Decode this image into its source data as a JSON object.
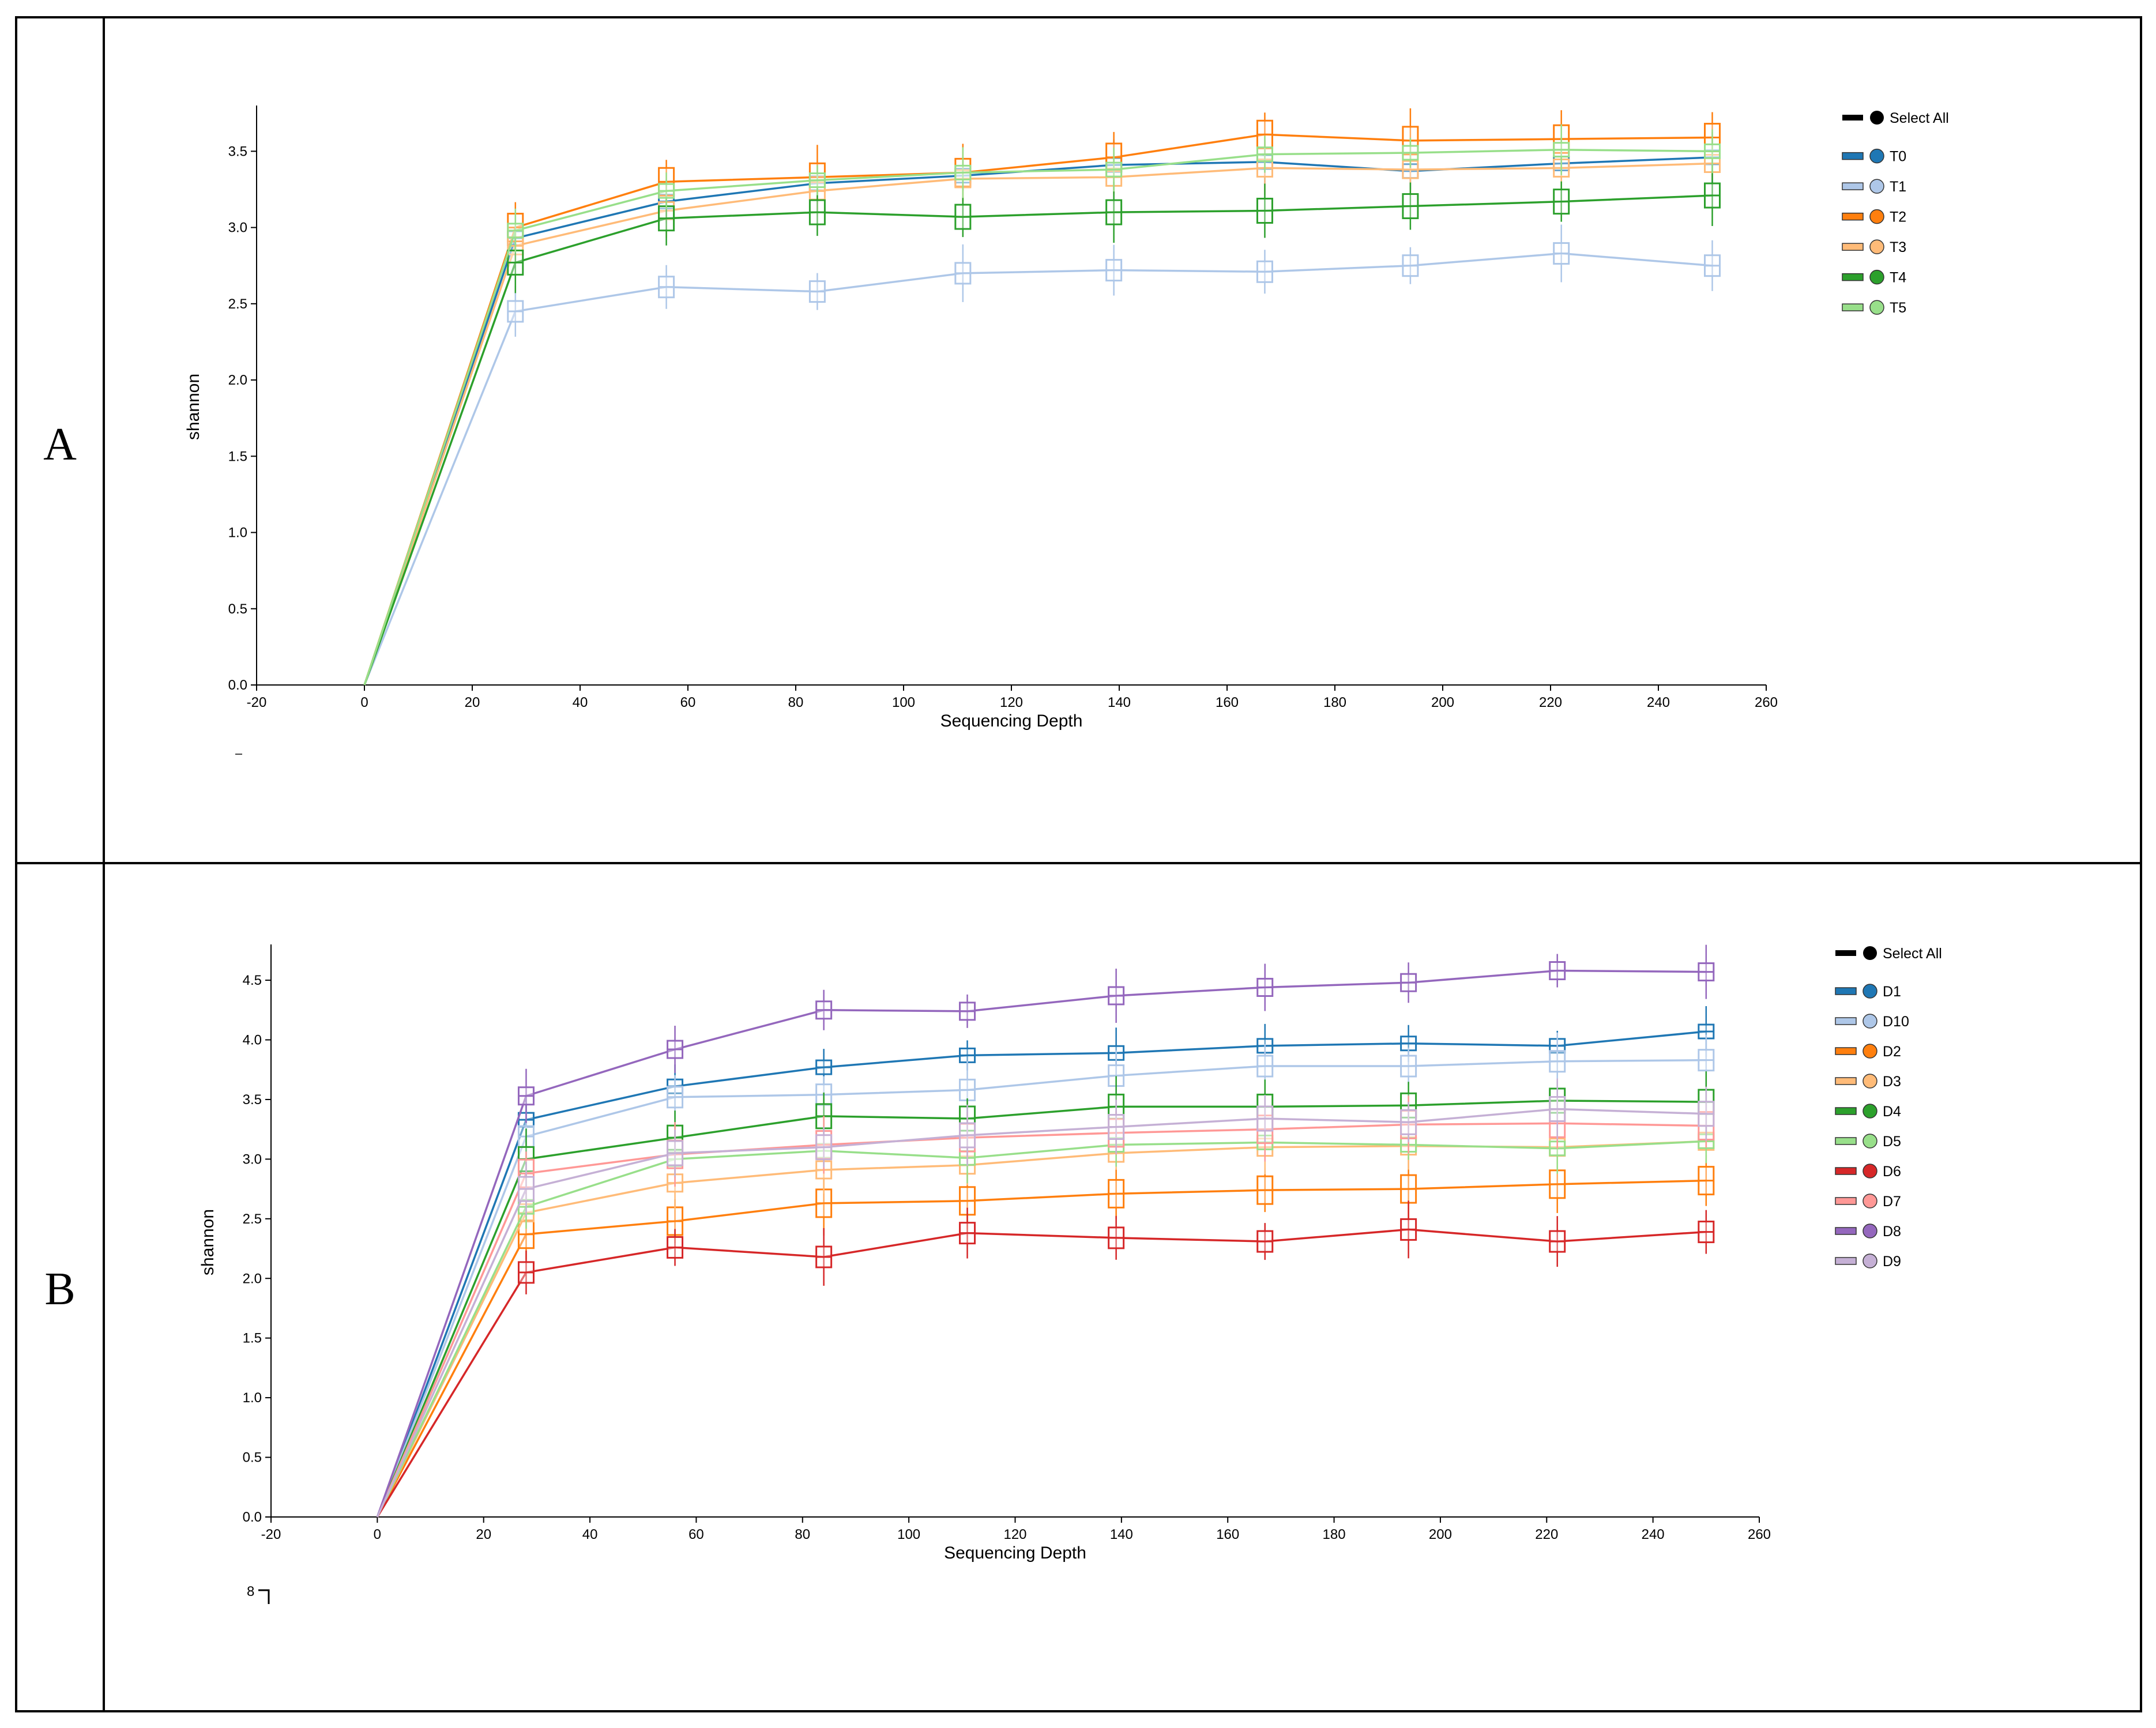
{
  "panels": [
    {
      "letter": "A"
    },
    {
      "letter": "B"
    }
  ],
  "stray_text_b": "8",
  "chart_data": [
    {
      "type": "line",
      "panel": "A",
      "title": "",
      "xlabel": "Sequencing Depth",
      "ylabel": "shannon",
      "xlim": [
        -20,
        260
      ],
      "ylim": [
        0,
        3.8
      ],
      "xticks": [
        -20,
        0,
        20,
        40,
        60,
        80,
        100,
        120,
        140,
        160,
        180,
        200,
        220,
        240,
        260
      ],
      "yticks": [
        0.0,
        0.5,
        1.0,
        1.5,
        2.0,
        2.5,
        3.0,
        3.5
      ],
      "grid": false,
      "legend_position": "top-right",
      "legend_select_all": "Select All",
      "x": [
        0,
        28,
        56,
        84,
        111,
        139,
        167,
        194,
        222,
        250
      ],
      "series": [
        {
          "name": "T0",
          "color": "#1f77b4",
          "values": [
            0,
            2.93,
            3.17,
            3.29,
            3.34,
            3.41,
            3.43,
            3.37,
            3.42,
            3.46
          ]
        },
        {
          "name": "T1",
          "color": "#aec7e8",
          "values": [
            0,
            2.45,
            2.61,
            2.58,
            2.7,
            2.72,
            2.71,
            2.75,
            2.83,
            2.75
          ]
        },
        {
          "name": "T2",
          "color": "#ff7f0e",
          "values": [
            0,
            3.0,
            3.3,
            3.33,
            3.36,
            3.46,
            3.61,
            3.57,
            3.58,
            3.59
          ]
        },
        {
          "name": "T3",
          "color": "#ffbb78",
          "values": [
            0,
            2.88,
            3.11,
            3.24,
            3.32,
            3.33,
            3.39,
            3.38,
            3.39,
            3.42
          ]
        },
        {
          "name": "T4",
          "color": "#2ca02c",
          "values": [
            0,
            2.77,
            3.06,
            3.1,
            3.07,
            3.1,
            3.11,
            3.14,
            3.17,
            3.21
          ]
        },
        {
          "name": "T5",
          "color": "#98df8a",
          "values": [
            0,
            2.98,
            3.24,
            3.31,
            3.36,
            3.38,
            3.48,
            3.49,
            3.51,
            3.5
          ]
        }
      ]
    },
    {
      "type": "line",
      "panel": "B",
      "title": "",
      "xlabel": "Sequencing Depth",
      "ylabel": "shannon",
      "xlim": [
        -20,
        260
      ],
      "ylim": [
        0,
        4.8
      ],
      "xticks": [
        -20,
        0,
        20,
        40,
        60,
        80,
        100,
        120,
        140,
        160,
        180,
        200,
        220,
        240,
        260
      ],
      "yticks": [
        0.0,
        0.5,
        1.0,
        1.5,
        2.0,
        2.5,
        3.0,
        3.5,
        4.0,
        4.5
      ],
      "grid": false,
      "legend_position": "top-right",
      "legend_select_all": "Select All",
      "x": [
        0,
        28,
        56,
        84,
        111,
        139,
        167,
        194,
        222,
        250
      ],
      "series": [
        {
          "name": "D1",
          "color": "#1f77b4",
          "values": [
            0,
            3.33,
            3.61,
            3.77,
            3.87,
            3.89,
            3.95,
            3.97,
            3.95,
            4.07
          ]
        },
        {
          "name": "D10",
          "color": "#aec7e8",
          "values": [
            0,
            3.19,
            3.52,
            3.54,
            3.58,
            3.7,
            3.78,
            3.78,
            3.82,
            3.83
          ]
        },
        {
          "name": "D2",
          "color": "#ff7f0e",
          "values": [
            0,
            2.37,
            2.48,
            2.63,
            2.65,
            2.71,
            2.74,
            2.75,
            2.79,
            2.82
          ]
        },
        {
          "name": "D3",
          "color": "#ffbb78",
          "values": [
            0,
            2.55,
            2.8,
            2.91,
            2.95,
            3.05,
            3.1,
            3.11,
            3.1,
            3.15
          ]
        },
        {
          "name": "D4",
          "color": "#2ca02c",
          "values": [
            0,
            3.0,
            3.18,
            3.36,
            3.34,
            3.44,
            3.44,
            3.45,
            3.49,
            3.48
          ]
        },
        {
          "name": "D5",
          "color": "#98df8a",
          "values": [
            0,
            2.6,
            3.0,
            3.07,
            3.01,
            3.12,
            3.14,
            3.12,
            3.09,
            3.15
          ]
        },
        {
          "name": "D6",
          "color": "#d62728",
          "values": [
            0,
            2.05,
            2.26,
            2.18,
            2.38,
            2.34,
            2.31,
            2.41,
            2.31,
            2.39
          ]
        },
        {
          "name": "D7",
          "color": "#ff9896",
          "values": [
            0,
            2.88,
            3.04,
            3.12,
            3.18,
            3.22,
            3.25,
            3.29,
            3.3,
            3.28
          ]
        },
        {
          "name": "D8",
          "color": "#9467bd",
          "values": [
            0,
            3.53,
            3.92,
            4.25,
            4.24,
            4.37,
            4.44,
            4.48,
            4.58,
            4.57
          ]
        },
        {
          "name": "D9",
          "color": "#c5b0d5",
          "values": [
            0,
            2.75,
            3.05,
            3.1,
            3.2,
            3.27,
            3.34,
            3.31,
            3.42,
            3.38
          ]
        }
      ]
    }
  ]
}
